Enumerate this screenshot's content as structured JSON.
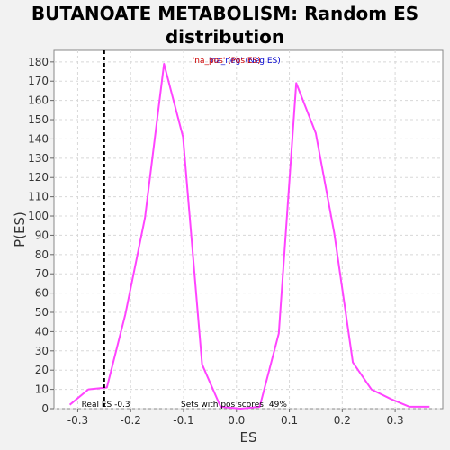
{
  "chart_data": {
    "type": "line",
    "title_lines": [
      "BUTANOATE METABOLISM: Random ES",
      "distribution"
    ],
    "xlabel": "ES",
    "ylabel": "P(ES)",
    "xlim": [
      -0.345,
      0.39
    ],
    "ylim": [
      0,
      186
    ],
    "x_ticks": [
      -0.3,
      -0.2,
      -0.1,
      0.0,
      0.1,
      0.2,
      0.3
    ],
    "x_tick_labels": [
      "-0.3",
      "-0.2",
      "-0.1",
      "0.0",
      "0.1",
      "0.2",
      "0.3"
    ],
    "y_ticks": [
      0,
      10,
      20,
      30,
      40,
      50,
      60,
      70,
      80,
      90,
      100,
      110,
      120,
      130,
      140,
      150,
      160,
      170,
      180
    ],
    "grid": true,
    "series": [
      {
        "color": "#ff44ff",
        "x": [
          -0.315,
          -0.28,
          -0.245,
          -0.21,
          -0.173,
          -0.137,
          -0.101,
          -0.065,
          -0.03,
          0.008,
          0.044,
          0.08,
          0.113,
          0.15,
          0.185,
          0.22,
          0.255,
          0.292,
          0.327,
          0.365
        ],
        "y": [
          2,
          10,
          11,
          49,
          99,
          179,
          141,
          23,
          1,
          0,
          1,
          39,
          169,
          143,
          91,
          24,
          10,
          5,
          1,
          1
        ]
      }
    ],
    "real_es": -0.25,
    "real_es_label": "Real ES -0.3",
    "pos_scores_label": "Sets with pos scores: 49%",
    "legend": {
      "neg_text": "'na_neg' (Neg ES)",
      "pos_text": "'na_pos' (Pos ES)",
      "neg_color": "#0000cc",
      "pos_color": "#cc0000",
      "placement": "top-center"
    },
    "background_color": "#ffffff",
    "grid_color": "#d8d8d8"
  }
}
